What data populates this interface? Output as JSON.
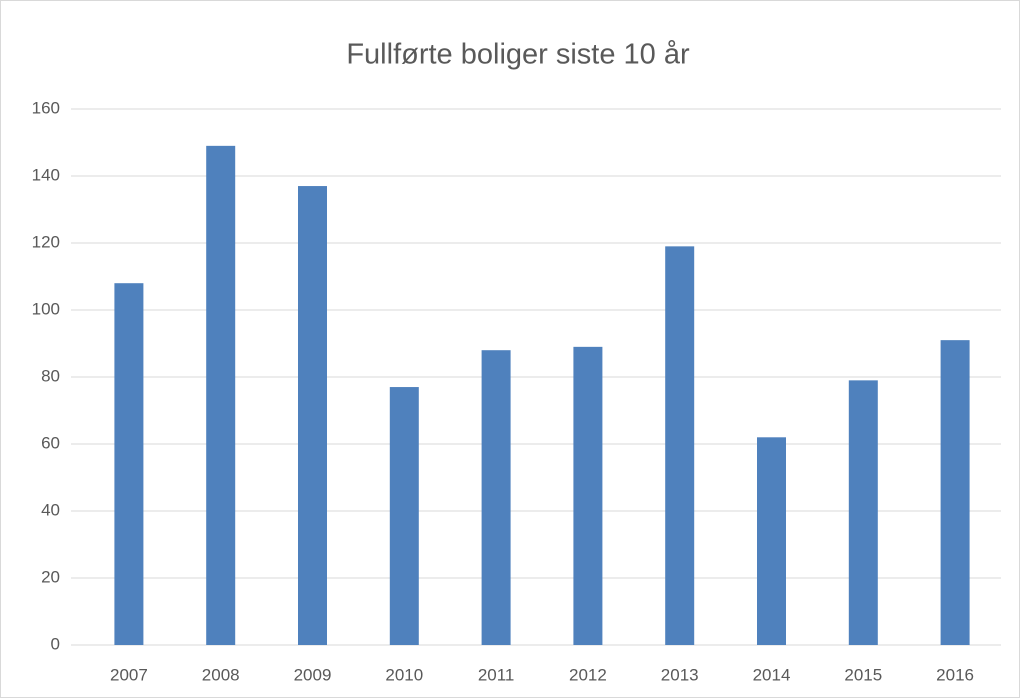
{
  "chart_data": {
    "type": "bar",
    "title": "Fullførte boliger siste 10 år",
    "categories": [
      "2007",
      "2008",
      "2009",
      "2010",
      "2011",
      "2012",
      "2013",
      "2014",
      "2015",
      "2016"
    ],
    "values": [
      108,
      149,
      137,
      77,
      88,
      89,
      119,
      62,
      79,
      91
    ],
    "color": "#4f81bd",
    "ylim": [
      0,
      160
    ],
    "yticks": [
      0,
      20,
      40,
      60,
      80,
      100,
      120,
      140,
      160
    ],
    "grid": true
  }
}
